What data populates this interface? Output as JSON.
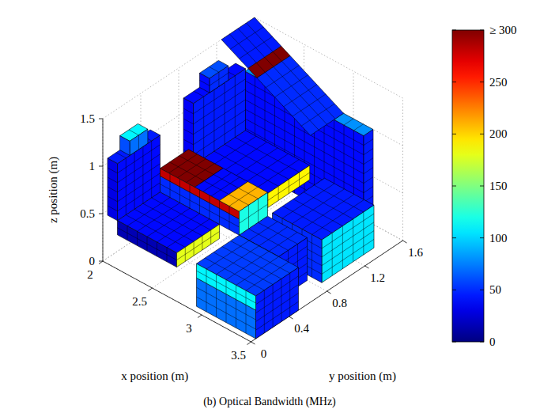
{
  "chart_data": {
    "type": "surface3d",
    "title": "(b) Optical Bandwidth (MHz)",
    "xlabel": "x position (m)",
    "ylabel": "y position (m)",
    "zlabel": "z position (m)",
    "xlim": [
      2,
      3.5
    ],
    "ylim": [
      0,
      1.6
    ],
    "zlim": [
      0,
      1.5
    ],
    "xticks": [
      2,
      2.5,
      3,
      3.5
    ],
    "yticks": [
      0,
      0.4,
      0.8,
      1.2,
      1.6
    ],
    "zticks": [
      0,
      0.5,
      1,
      1.5
    ],
    "grid": true,
    "colorbar": {
      "range": [
        0,
        300
      ],
      "ticks": [
        0,
        50,
        100,
        150,
        200,
        250,
        {
          "value": 300,
          "label": "≥ 300"
        }
      ]
    },
    "patches": [
      {
        "x": [
          2.1,
          2.1,
          2.1,
          2.1
        ],
        "y": [
          0.05,
          0.5,
          0.5,
          0.05
        ],
        "z": [
          0.45,
          0.45,
          1.05,
          1.05
        ],
        "value": 40
      },
      {
        "x": [
          2.0,
          2.1,
          2.1,
          2.0
        ],
        "y": [
          0.05,
          0.05,
          0.5,
          0.5
        ],
        "z": [
          1.05,
          1.05,
          1.05,
          1.05
        ],
        "value": 45
      },
      {
        "x": [
          2.0,
          2.1,
          2.1,
          2.0
        ],
        "y": [
          0.05,
          0.05,
          0.05,
          0.05
        ],
        "z": [
          0.45,
          0.45,
          1.05,
          1.05
        ],
        "value": 30
      },
      {
        "x": [
          2.1,
          2.1,
          2.1,
          2.1
        ],
        "y": [
          0.18,
          0.37,
          0.37,
          0.18
        ],
        "z": [
          1.05,
          1.05,
          1.2,
          1.2
        ],
        "value": 70
      },
      {
        "x": [
          2.0,
          2.1,
          2.1,
          2.0
        ],
        "y": [
          0.18,
          0.18,
          0.37,
          0.37
        ],
        "z": [
          1.2,
          1.2,
          1.2,
          1.2
        ],
        "value": 110
      },
      {
        "x": [
          2.0,
          2.1,
          2.1,
          2.0
        ],
        "y": [
          0.18,
          0.18,
          0.18,
          0.18
        ],
        "z": [
          1.05,
          1.05,
          1.2,
          1.2
        ],
        "value": 60
      },
      {
        "x": [
          2.1,
          2.7,
          2.7,
          2.1
        ],
        "y": [
          0.05,
          0.05,
          0.5,
          0.5
        ],
        "z": [
          0.45,
          0.45,
          0.45,
          0.45
        ],
        "value": 40
      },
      {
        "x": [
          2.7,
          2.7,
          2.7,
          2.7
        ],
        "y": [
          0.05,
          0.5,
          0.5,
          0.05
        ],
        "z": [
          0.3,
          0.3,
          0.45,
          0.45
        ],
        "value": 180
      },
      {
        "x": [
          2.1,
          2.7,
          2.7,
          2.1
        ],
        "y": [
          0.05,
          0.05,
          0.05,
          0.05
        ],
        "z": [
          0.3,
          0.3,
          0.45,
          0.45
        ],
        "value": 15
      },
      {
        "x": [
          2.9,
          3.5,
          3.5,
          2.9
        ],
        "y": [
          0.05,
          0.05,
          0.5,
          0.5
        ],
        "z": [
          0.45,
          0.45,
          0.45,
          0.45
        ],
        "value": 55
      },
      {
        "x": [
          3.5,
          3.5,
          3.5,
          3.5
        ],
        "y": [
          0.05,
          0.5,
          0.5,
          0.05
        ],
        "z": [
          0,
          0,
          0.45,
          0.45
        ],
        "value": 45
      },
      {
        "x": [
          2.9,
          3.5,
          3.5,
          2.9
        ],
        "y": [
          0.05,
          0.05,
          0.05,
          0.05
        ],
        "z": [
          0.3,
          0.3,
          0.45,
          0.45
        ],
        "value": 110
      },
      {
        "x": [
          2.9,
          3.5,
          3.5,
          2.9
        ],
        "y": [
          0.05,
          0.05,
          0.05,
          0.05
        ],
        "z": [
          0,
          0,
          0.3,
          0.3
        ],
        "value": 70
      },
      {
        "x": [
          2.1,
          2.45,
          2.45,
          2.1
        ],
        "y": [
          0.5,
          0.5,
          0.8,
          0.8
        ],
        "z": [
          0.7,
          0.7,
          0.7,
          0.7
        ],
        "value": 300
      },
      {
        "x": [
          2.45,
          2.7,
          2.7,
          2.45
        ],
        "y": [
          0.5,
          0.5,
          0.8,
          0.8
        ],
        "z": [
          0.7,
          0.7,
          0.7,
          0.7
        ],
        "value": 40
      },
      {
        "x": [
          2.7,
          2.9,
          2.9,
          2.7
        ],
        "y": [
          0.5,
          0.5,
          0.8,
          0.8
        ],
        "z": [
          0.7,
          0.7,
          0.7,
          0.7
        ],
        "value": 210
      },
      {
        "x": [
          2.9,
          2.9,
          2.9,
          2.9
        ],
        "y": [
          0.5,
          0.8,
          0.8,
          0.5
        ],
        "z": [
          0.45,
          0.45,
          0.7,
          0.7
        ],
        "value": 120
      },
      {
        "x": [
          2.1,
          2.9,
          2.9,
          2.1
        ],
        "y": [
          0.5,
          0.5,
          0.5,
          0.5
        ],
        "z": [
          0.62,
          0.62,
          0.7,
          0.7
        ],
        "value": 280
      },
      {
        "x": [
          2.1,
          2.9,
          2.9,
          2.1
        ],
        "y": [
          0.5,
          0.5,
          0.5,
          0.5
        ],
        "z": [
          0.45,
          0.45,
          0.62,
          0.62
        ],
        "value": 50
      },
      {
        "x": [
          2.9,
          3.3,
          3.3,
          2.9
        ],
        "y": [
          0.5,
          0.5,
          0.8,
          0.8
        ],
        "z": [
          0.45,
          0.45,
          0.45,
          0.45
        ],
        "value": 50
      },
      {
        "x": [
          3.3,
          3.3,
          3.3,
          3.3
        ],
        "y": [
          0.5,
          0.8,
          0.8,
          0.5
        ],
        "z": [
          0,
          0,
          0.45,
          0.45
        ],
        "value": 45
      },
      {
        "x": [
          2.9,
          3.3,
          3.3,
          2.9
        ],
        "y": [
          0.5,
          0.5,
          0.5,
          0.5
        ],
        "z": [
          0,
          0,
          0.45,
          0.45
        ],
        "value": 90
      },
      {
        "x": [
          2.1,
          2.1,
          2.1,
          2.1
        ],
        "y": [
          0.85,
          1.4,
          1.4,
          0.85
        ],
        "z": [
          0.5,
          0.5,
          1.15,
          1.15
        ],
        "value": 45
      },
      {
        "x": [
          2.0,
          2.1,
          2.1,
          2.0
        ],
        "y": [
          0.85,
          0.85,
          1.4,
          1.4
        ],
        "z": [
          1.15,
          1.15,
          1.15,
          1.15
        ],
        "value": 40
      },
      {
        "x": [
          2.0,
          2.1,
          2.1,
          2.0
        ],
        "y": [
          0.85,
          0.85,
          0.85,
          0.85
        ],
        "z": [
          0.5,
          0.5,
          1.15,
          1.15
        ],
        "value": 35
      },
      {
        "x": [
          2.1,
          2.1,
          2.1,
          2.1
        ],
        "y": [
          1.02,
          1.22,
          1.22,
          1.02
        ],
        "z": [
          1.15,
          1.15,
          1.3,
          1.3
        ],
        "value": 50
      },
      {
        "x": [
          2.0,
          2.1,
          2.1,
          2.0
        ],
        "y": [
          1.02,
          1.02,
          1.22,
          1.22
        ],
        "z": [
          1.3,
          1.3,
          1.3,
          1.3
        ],
        "value": 60
      },
      {
        "x": [
          2.0,
          2.1,
          2.1,
          2.0
        ],
        "y": [
          1.02,
          1.02,
          1.02,
          1.02
        ],
        "z": [
          1.15,
          1.15,
          1.3,
          1.3
        ],
        "value": 40
      },
      {
        "x": [
          2.1,
          2.75,
          2.75,
          2.1
        ],
        "y": [
          0.85,
          0.85,
          1.4,
          1.4
        ],
        "z": [
          0.5,
          0.5,
          0.5,
          0.5
        ],
        "value": 40
      },
      {
        "x": [
          2.75,
          2.75,
          2.75,
          2.75
        ],
        "y": [
          0.85,
          1.4,
          1.4,
          0.85
        ],
        "z": [
          0.35,
          0.35,
          0.5,
          0.5
        ],
        "value": 190
      },
      {
        "x": [
          2.1,
          2.75,
          2.75,
          2.1
        ],
        "y": [
          0.85,
          0.85,
          0.85,
          0.85
        ],
        "z": [
          0.35,
          0.35,
          0.5,
          0.5
        ],
        "value": 300
      },
      {
        "x": [
          2.9,
          3.4,
          3.4,
          2.9
        ],
        "y": [
          0.85,
          0.85,
          1.4,
          1.4
        ],
        "z": [
          0.45,
          0.45,
          0.45,
          0.45
        ],
        "value": 45
      },
      {
        "x": [
          3.4,
          3.4,
          3.4,
          3.4
        ],
        "y": [
          0.85,
          1.4,
          1.4,
          0.85
        ],
        "z": [
          0,
          0,
          0.45,
          0.45
        ],
        "value": 105
      },
      {
        "x": [
          2.9,
          3.4,
          3.4,
          2.9
        ],
        "y": [
          0.85,
          0.85,
          0.85,
          0.85
        ],
        "z": [
          0,
          0,
          0.45,
          0.45
        ],
        "value": 50
      },
      {
        "x": [
          2.0,
          3.2,
          3.2,
          2.0
        ],
        "y": [
          1.5,
          1.5,
          1.5,
          1.5
        ],
        "z": [
          0,
          0,
          1.0,
          1.0
        ],
        "value": 40
      },
      {
        "x": [
          3.2,
          3.2,
          3.2,
          3.2
        ],
        "y": [
          1.5,
          1.6,
          1.6,
          1.5
        ],
        "z": [
          0,
          0,
          1.0,
          1.0
        ],
        "value": 45
      },
      {
        "x": [
          2.0,
          3.2,
          3.2,
          2.0
        ],
        "y": [
          1.5,
          1.5,
          1.6,
          1.6
        ],
        "z": [
          1.0,
          1.0,
          1.0,
          1.0
        ],
        "value": 80
      },
      {
        "x": [
          2.0,
          2.0,
          2.27,
          2.27
        ],
        "y": [
          1.25,
          1.6,
          1.6,
          1.25
        ],
        "z": [
          1.5,
          1.5,
          1.35,
          1.35
        ],
        "value": 45
      },
      {
        "x": [
          2.27,
          2.27,
          2.36,
          2.36
        ],
        "y": [
          1.25,
          1.6,
          1.6,
          1.25
        ],
        "z": [
          1.35,
          1.35,
          1.3,
          1.3
        ],
        "value": 300
      },
      {
        "x": [
          2.36,
          2.36,
          2.9,
          2.9
        ],
        "y": [
          1.25,
          1.6,
          1.6,
          1.25
        ],
        "z": [
          1.3,
          1.3,
          1.0,
          1.0
        ],
        "value": 50
      }
    ]
  }
}
